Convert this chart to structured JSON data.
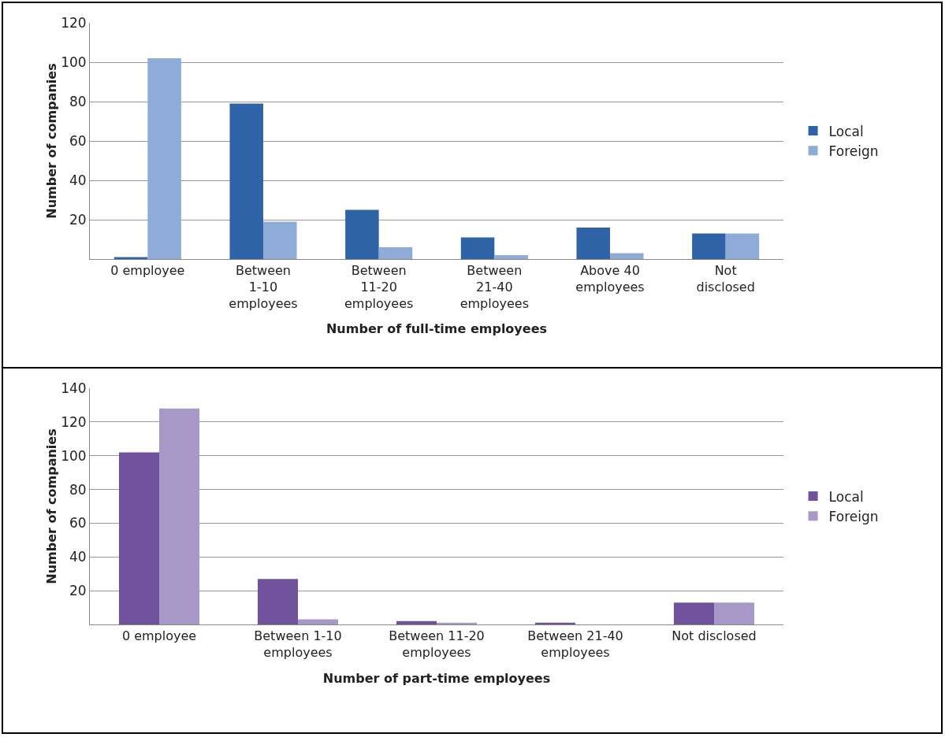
{
  "chart_data": [
    {
      "type": "bar",
      "xlabel": "Number of full-time employees",
      "ylabel": "Number of companies",
      "categories": [
        "0 employee",
        "Between 1-10 employees",
        "Between 11-20 employees",
        "Between 21-40 employees",
        "Above 40 employees",
        "Not disclosed"
      ],
      "series": [
        {
          "name": "Local",
          "color": "#2f63a8",
          "values": [
            1,
            79,
            25,
            11,
            16,
            13
          ]
        },
        {
          "name": "Foreign",
          "color": "#8fabd8",
          "values": [
            102,
            19,
            6,
            2,
            3,
            13
          ]
        }
      ],
      "ylim": [
        0,
        120
      ],
      "yticks": [
        20,
        40,
        60,
        80,
        100,
        120
      ],
      "grid": "y",
      "legend": "right"
    },
    {
      "type": "bar",
      "xlabel": "Number of part-time employees",
      "ylabel": "Number of companies",
      "categories": [
        "0 employee",
        "Between 1-10 employees",
        "Between 11-20 employees",
        "Between 21-40 employees",
        "Not disclosed"
      ],
      "series": [
        {
          "name": "Local",
          "color": "#70519b",
          "values": [
            102,
            27,
            2,
            1,
            13
          ]
        },
        {
          "name": "Foreign",
          "color": "#a898c8",
          "values": [
            128,
            3,
            1,
            0,
            13
          ]
        }
      ],
      "ylim": [
        0,
        140
      ],
      "yticks": [
        20,
        40,
        60,
        80,
        100,
        120,
        140
      ],
      "grid": "y",
      "legend": "right"
    }
  ]
}
